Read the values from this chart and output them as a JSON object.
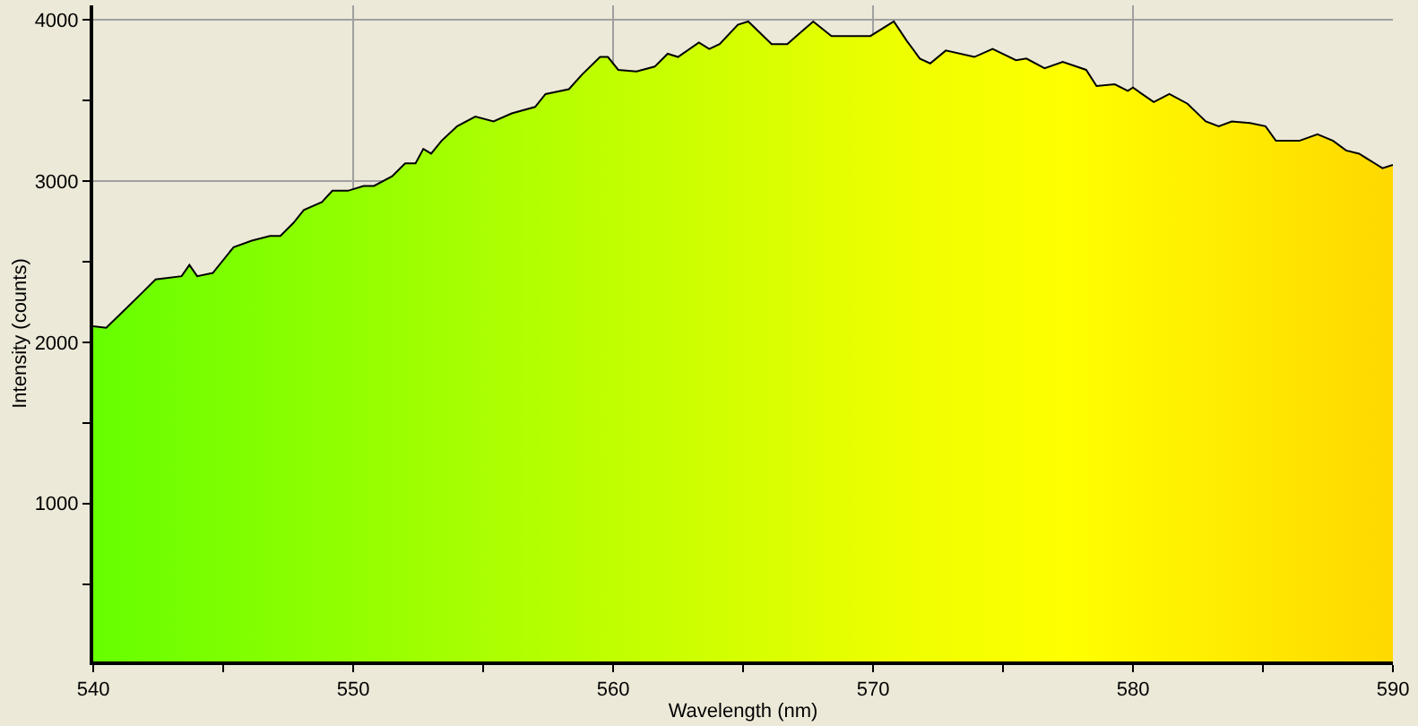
{
  "chart_data": {
    "type": "area",
    "xlabel": "Wavelength (nm)",
    "ylabel": "Intensity (counts)",
    "x": [
      540,
      540.5,
      541.2,
      541.9,
      542.4,
      543.4,
      543.7,
      544.0,
      544.6,
      545.4,
      546.1,
      546.8,
      547.2,
      547.7,
      548.1,
      548.8,
      549.2,
      549.8,
      550.4,
      550.8,
      551.5,
      552.0,
      552.4,
      552.7,
      553.0,
      553.4,
      554.0,
      554.7,
      555.4,
      556.1,
      557.0,
      557.4,
      558.3,
      558.8,
      559.5,
      559.8,
      560.2,
      560.9,
      561.6,
      562.1,
      562.5,
      563.3,
      563.7,
      564.1,
      564.8,
      565.2,
      566.1,
      566.7,
      567.2,
      567.7,
      568.4,
      569.9,
      570.8,
      571.3,
      571.8,
      572.2,
      572.8,
      573.9,
      574.6,
      575.5,
      575.9,
      576.6,
      577.3,
      578.2,
      578.6,
      579.3,
      579.8,
      580.0,
      580.8,
      581.4,
      582.1,
      582.8,
      583.3,
      583.8,
      584.5,
      585.1,
      585.5,
      586.4,
      587.1,
      587.7,
      588.2,
      588.7,
      589.3,
      589.6,
      590
    ],
    "series": [
      {
        "color": "#000000",
        "values": [
          2100,
          2090,
          2200,
          2310,
          2390,
          2410,
          2480,
          2410,
          2430,
          2590,
          2630,
          2660,
          2660,
          2740,
          2820,
          2870,
          2940,
          2940,
          2970,
          2970,
          3030,
          3110,
          3110,
          3200,
          3170,
          3250,
          3340,
          3400,
          3370,
          3420,
          3460,
          3540,
          3570,
          3660,
          3770,
          3770,
          3690,
          3680,
          3710,
          3790,
          3770,
          3860,
          3820,
          3850,
          3970,
          3990,
          3850,
          3850,
          3920,
          3990,
          3900,
          3900,
          3990,
          3870,
          3760,
          3730,
          3810,
          3770,
          3820,
          3750,
          3760,
          3700,
          3740,
          3690,
          3590,
          3600,
          3560,
          3580,
          3490,
          3540,
          3480,
          3370,
          3340,
          3370,
          3360,
          3340,
          3250,
          3250,
          3290,
          3250,
          3190,
          3170,
          3110,
          3080,
          3100
        ]
      }
    ],
    "xlim": [
      540,
      590
    ],
    "ylim": [
      20,
      4090
    ],
    "xticks": [
      540,
      {
        "value": 545,
        "label": null
      },
      550,
      {
        "value": 555,
        "label": null
      },
      560,
      {
        "value": 565,
        "label": null
      },
      570,
      {
        "value": 575,
        "label": null
      },
      580,
      {
        "value": 585,
        "label": null
      },
      590
    ],
    "yticks": [
      {
        "value": 500,
        "label": null
      },
      1000,
      {
        "value": 1500,
        "label": null
      },
      2000,
      {
        "value": 2500,
        "label": null
      },
      3000,
      {
        "value": 3500,
        "label": null
      },
      4000
    ],
    "grid": true
  }
}
